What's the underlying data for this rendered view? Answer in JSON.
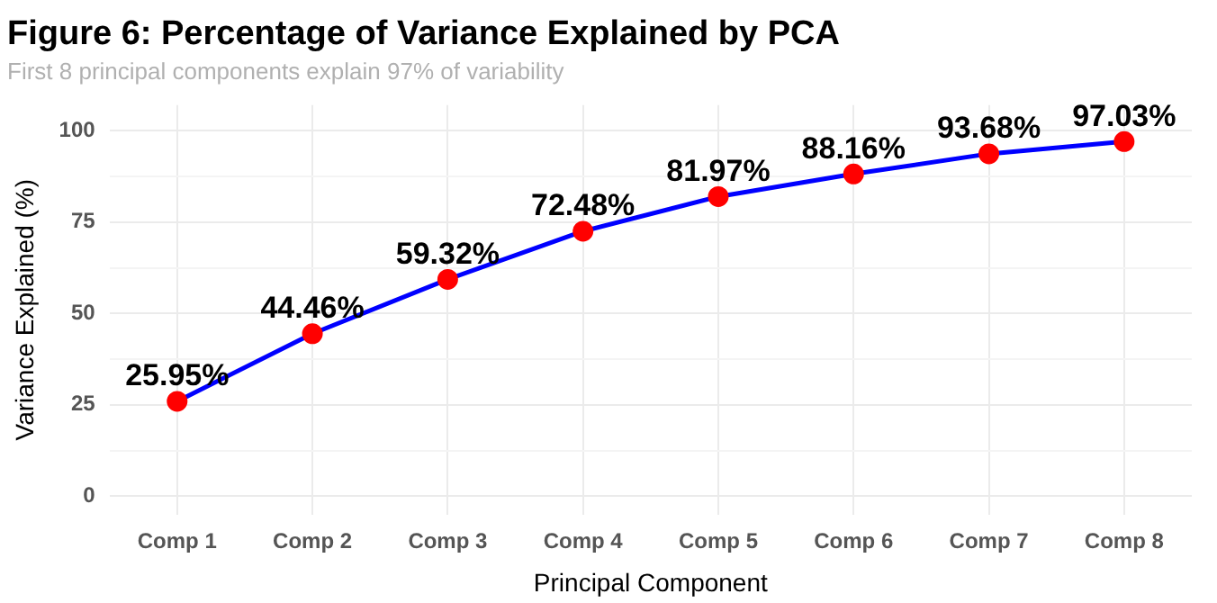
{
  "chart_data": {
    "type": "line",
    "title": "Figure 6: Percentage of Variance Explained by PCA",
    "subtitle": "First 8 principal components explain 97% of variability",
    "xlabel": "Principal Component",
    "ylabel": "Variance Explained (%)",
    "categories": [
      "Comp 1",
      "Comp 2",
      "Comp 3",
      "Comp 4",
      "Comp 5",
      "Comp 6",
      "Comp 7",
      "Comp 8"
    ],
    "series": [
      {
        "color": "#0000ff",
        "values": [
          25.95,
          44.46,
          59.32,
          72.48,
          81.97,
          88.16,
          93.68,
          97.03
        ],
        "value_labels": [
          "25.95%",
          "44.46%",
          "59.32%",
          "72.48%",
          "81.97%",
          "88.16%",
          "93.68%",
          "97.03%"
        ],
        "colors": [
          "#ff0000",
          "#ff0000",
          "#ff0000",
          "#ff0000",
          "#ff0000",
          "#ff0000",
          "#ff0000",
          "#ff0000"
        ]
      }
    ],
    "ylim": [
      -5,
      107
    ],
    "yticks": [
      0,
      {
        "value": 12.5,
        "label": null
      },
      25,
      {
        "value": 37.5,
        "label": null
      },
      50,
      {
        "value": 62.5,
        "label": null
      },
      75,
      {
        "value": 87.5,
        "label": null
      },
      100
    ],
    "grid": true,
    "marker": "circle",
    "line_style": "solid"
  }
}
